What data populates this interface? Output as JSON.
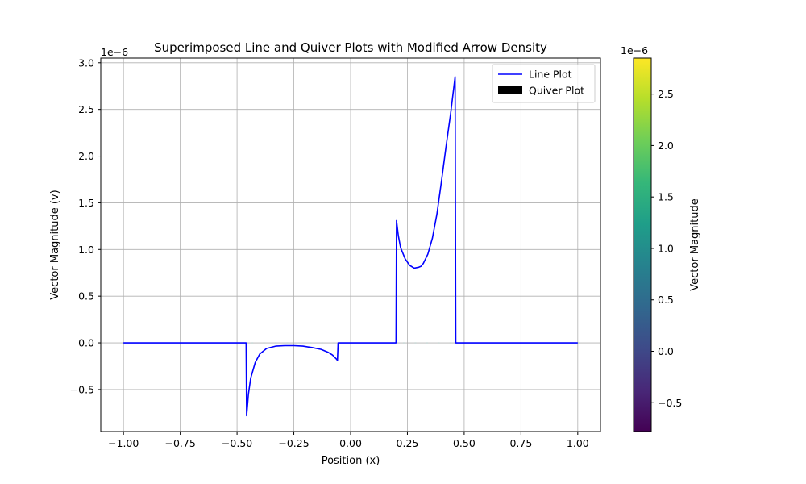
{
  "chart_data": [
    {
      "type": "line",
      "title": "Superimposed Line and Quiver Plots with Modified Arrow Density",
      "xlabel": "Position (x)",
      "ylabel": "Vector Magnitude (v)",
      "xlim": [
        -1.1,
        1.1
      ],
      "ylim": [
        -9.5e-07,
        3.05e-06
      ],
      "y_offset_label": "1e−6",
      "grid": true,
      "legend": {
        "placement": "top-right",
        "entries": [
          "Line Plot",
          "Quiver Plot"
        ]
      },
      "x_ticks": [
        -1.0,
        -0.75,
        -0.5,
        -0.25,
        0.0,
        0.25,
        0.5,
        0.75,
        1.0
      ],
      "x_tick_labels": [
        "−1.00",
        "−0.75",
        "−0.50",
        "−0.25",
        "0.00",
        "0.25",
        "0.50",
        "0.75",
        "1.00"
      ],
      "y_ticks": [
        -5e-07,
        0,
        5e-07,
        1e-06,
        1.5e-06,
        2e-06,
        2.5e-06,
        3e-06
      ],
      "y_tick_labels": [
        "−0.5",
        "0.0",
        "0.5",
        "1.0",
        "1.5",
        "2.0",
        "2.5",
        "3.0"
      ],
      "series": [
        {
          "name": "Line Plot",
          "color": "#0000ff",
          "x": [
            -1.0,
            -0.46,
            -0.458,
            -0.455,
            -0.45,
            -0.44,
            -0.42,
            -0.4,
            -0.37,
            -0.33,
            -0.29,
            -0.25,
            -0.21,
            -0.17,
            -0.13,
            -0.1,
            -0.08,
            -0.06,
            -0.058,
            -0.055,
            0.2,
            0.202,
            0.205,
            0.21,
            0.22,
            0.24,
            0.26,
            0.28,
            0.3,
            0.31,
            0.32,
            0.34,
            0.36,
            0.38,
            0.4,
            0.42,
            0.44,
            0.455,
            0.46,
            0.463,
            1.0
          ],
          "y": [
            0,
            0,
            -7.8e-07,
            -7e-07,
            -5.5e-07,
            -3.8e-07,
            -2.1e-07,
            -1.2e-07,
            -6e-08,
            -3.5e-08,
            -3e-08,
            -3e-08,
            -3.5e-08,
            -5e-08,
            -7e-08,
            -1e-07,
            -1.3e-07,
            -1.8e-07,
            -1.9e-07,
            0,
            0,
            1.31e-06,
            1.25e-06,
            1.15e-06,
            1.02e-06,
            9e-07,
            8.3e-07,
            8e-07,
            8.1e-07,
            8.2e-07,
            8.5e-07,
            9.5e-07,
            1.12e-06,
            1.38e-06,
            1.73e-06,
            2.1e-06,
            2.45e-06,
            2.75e-06,
            2.85e-06,
            0,
            0
          ]
        },
        {
          "name": "Quiver Plot",
          "type": "quiver",
          "color": "#000000",
          "colormap": "viridis"
        }
      ],
      "colorbar": {
        "label": "Vector Magnitude",
        "offset_label": "1e−6",
        "range": [
          -7.8e-07,
          2.85e-06
        ],
        "ticks": [
          -5e-07,
          0,
          5e-07,
          1e-06,
          1.5e-06,
          2e-06,
          2.5e-06
        ],
        "tick_labels": [
          "−0.5",
          "0.0",
          "0.5",
          "1.0",
          "1.5",
          "2.0",
          "2.5"
        ],
        "colors": [
          "#440154",
          "#482878",
          "#3e4a89",
          "#31688e",
          "#26828e",
          "#1f9e89",
          "#35b779",
          "#6ece58",
          "#b5de2b",
          "#fde725"
        ]
      }
    }
  ]
}
